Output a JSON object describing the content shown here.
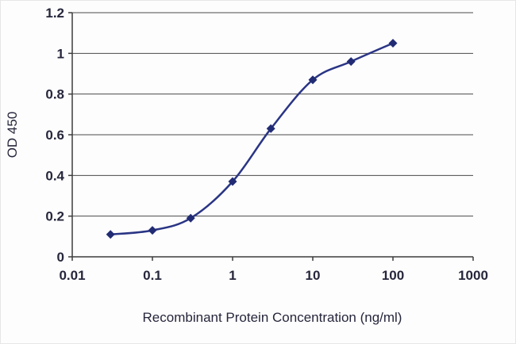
{
  "chart_data": {
    "type": "line",
    "title": "",
    "xlabel": "Recombinant Protein Concentration (ng/ml)",
    "ylabel": "OD 450",
    "x_scale": "log",
    "x": [
      0.03,
      0.1,
      0.3,
      1,
      3,
      10,
      30,
      100
    ],
    "series": [
      {
        "name": "OD 450",
        "values": [
          0.11,
          0.13,
          0.19,
          0.37,
          0.63,
          0.87,
          0.96,
          1.05
        ]
      }
    ],
    "xlim": [
      0.01,
      1000
    ],
    "ylim": [
      0,
      1.2
    ],
    "x_ticks": [
      {
        "value": 0.01,
        "label": "0.01"
      },
      {
        "value": 0.1,
        "label": "0.1"
      },
      {
        "value": 1,
        "label": "1"
      },
      {
        "value": 10,
        "label": "10"
      },
      {
        "value": 100,
        "label": "100"
      },
      {
        "value": 1000,
        "label": "1000"
      }
    ],
    "y_ticks": [
      {
        "value": 0,
        "label": "0"
      },
      {
        "value": 0.2,
        "label": "0.2"
      },
      {
        "value": 0.4,
        "label": "0.4"
      },
      {
        "value": 0.6,
        "label": "0.6"
      },
      {
        "value": 0.8,
        "label": "0.8"
      },
      {
        "value": 1,
        "label": "1"
      },
      {
        "value": 1.2,
        "label": "1.2"
      }
    ],
    "grid": "horizontal",
    "legend": "none",
    "line_smooth": true,
    "marker": "diamond",
    "colors": {
      "line": "#2a3585",
      "marker": "#222c74",
      "text": "#26263c",
      "axis": "#3c3c3c",
      "grid": "#4a4a4a",
      "background": "#fdfdfd"
    }
  }
}
